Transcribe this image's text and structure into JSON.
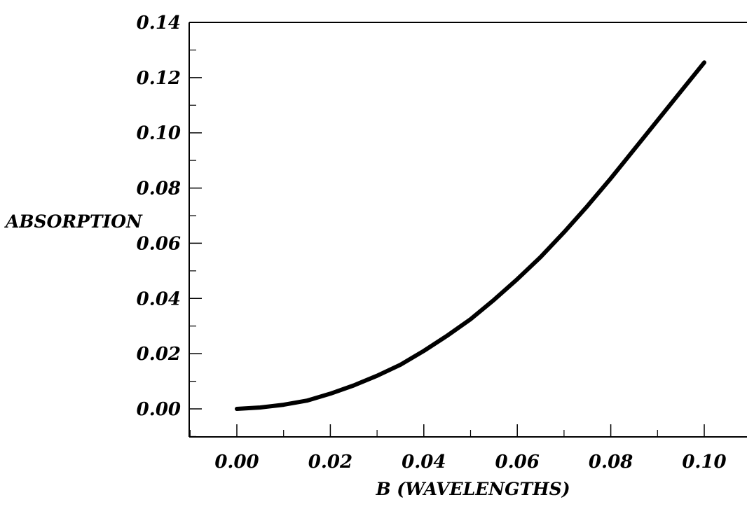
{
  "chart_data": {
    "type": "line",
    "title": "",
    "xlabel": "B (WAVELENGTHS)",
    "ylabel": "ABSORPTION",
    "xlim": [
      -0.01,
      0.11
    ],
    "ylim": [
      -0.01,
      0.14
    ],
    "x_ticks": [
      "0.00",
      "0.02",
      "0.04",
      "0.06",
      "0.08",
      "0.10"
    ],
    "y_ticks": [
      "0.00",
      "0.02",
      "0.04",
      "0.06",
      "0.08",
      "0.10",
      "0.12",
      "0.14"
    ],
    "grid": false,
    "series": [
      {
        "values": [
          {
            "x": 0.0,
            "y": 0.0
          },
          {
            "x": 0.005,
            "y": 0.0005
          },
          {
            "x": 0.01,
            "y": 0.0015
          },
          {
            "x": 0.015,
            "y": 0.003
          },
          {
            "x": 0.02,
            "y": 0.0055
          },
          {
            "x": 0.025,
            "y": 0.0085
          },
          {
            "x": 0.03,
            "y": 0.012
          },
          {
            "x": 0.035,
            "y": 0.016
          },
          {
            "x": 0.04,
            "y": 0.021
          },
          {
            "x": 0.045,
            "y": 0.0265
          },
          {
            "x": 0.05,
            "y": 0.0325
          },
          {
            "x": 0.055,
            "y": 0.0395
          },
          {
            "x": 0.06,
            "y": 0.047
          },
          {
            "x": 0.065,
            "y": 0.055
          },
          {
            "x": 0.07,
            "y": 0.064
          },
          {
            "x": 0.075,
            "y": 0.0735
          },
          {
            "x": 0.08,
            "y": 0.0835
          },
          {
            "x": 0.085,
            "y": 0.094
          },
          {
            "x": 0.09,
            "y": 0.1045
          },
          {
            "x": 0.095,
            "y": 0.115
          },
          {
            "x": 0.1,
            "y": 0.1255
          }
        ],
        "color": "#000000"
      }
    ]
  }
}
